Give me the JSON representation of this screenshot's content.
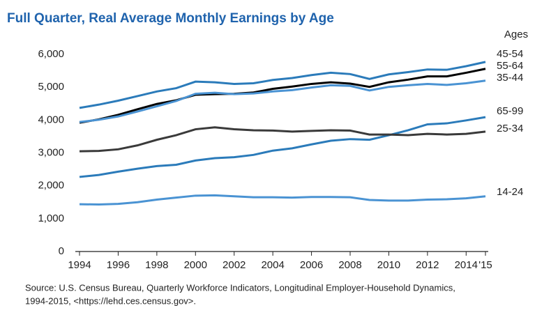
{
  "chart_data": {
    "type": "line",
    "title": "Full Quarter, Real Average Monthly Earnings by Age",
    "legend_title": "Ages",
    "source": [
      "Source: U.S. Census Bureau, Quarterly Workforce Indicators, Longitudinal Employer-Household Dynamics,",
      "1994-2015, <https://lehd.ces.census.gov>."
    ],
    "x": [
      1994,
      1995,
      1996,
      1997,
      1998,
      1999,
      2000,
      2001,
      2002,
      2003,
      2004,
      2005,
      2006,
      2007,
      2008,
      2009,
      2010,
      2011,
      2012,
      2013,
      2014,
      2015
    ],
    "xlim": [
      1994,
      2015
    ],
    "xticks": [
      1994,
      1996,
      1998,
      2000,
      2002,
      2004,
      2006,
      2008,
      2010,
      2012,
      2014,
      {
        "value": 2015,
        "label": "'15"
      }
    ],
    "ylim": [
      0,
      6000
    ],
    "yticks": [
      0,
      {
        "value": 1000,
        "label": "1,000"
      },
      {
        "value": 2000,
        "label": "2,000"
      },
      {
        "value": 3000,
        "label": "3,000"
      },
      {
        "value": 4000,
        "label": "4,000"
      },
      {
        "value": 5000,
        "label": "5,000"
      },
      {
        "value": 6000,
        "label": "6,000"
      }
    ],
    "series": [
      {
        "name": "45-54",
        "color": "#2b7bba",
        "values": [
          4370,
          4470,
          4590,
          4730,
          4870,
          4970,
          5170,
          5150,
          5100,
          5120,
          5220,
          5280,
          5370,
          5440,
          5400,
          5250,
          5390,
          5460,
          5540,
          5530,
          5640,
          5770
        ]
      },
      {
        "name": "55-64",
        "color": "#000000",
        "values": [
          3920,
          4020,
          4160,
          4330,
          4490,
          4600,
          4770,
          4790,
          4800,
          4840,
          4950,
          5020,
          5100,
          5150,
          5110,
          5010,
          5150,
          5230,
          5330,
          5330,
          5440,
          5560
        ]
      },
      {
        "name": "35-44",
        "color": "#4a93d3",
        "values": [
          3940,
          4010,
          4110,
          4260,
          4420,
          4580,
          4800,
          4830,
          4790,
          4810,
          4870,
          4910,
          4990,
          5060,
          5040,
          4900,
          5010,
          5060,
          5100,
          5070,
          5120,
          5200
        ]
      },
      {
        "name": "65-99",
        "color": "#2b7bba",
        "values": [
          2270,
          2330,
          2430,
          2520,
          2600,
          2640,
          2770,
          2840,
          2870,
          2940,
          3070,
          3140,
          3260,
          3370,
          3420,
          3400,
          3540,
          3690,
          3870,
          3900,
          3990,
          4090
        ]
      },
      {
        "name": "25-34",
        "color": "#3a3a3a",
        "values": [
          3050,
          3060,
          3110,
          3230,
          3400,
          3540,
          3720,
          3780,
          3720,
          3690,
          3680,
          3650,
          3670,
          3690,
          3680,
          3560,
          3560,
          3540,
          3580,
          3560,
          3580,
          3650
        ]
      },
      {
        "name": "14-24",
        "color": "#4a93d3",
        "values": [
          1440,
          1430,
          1450,
          1500,
          1580,
          1640,
          1700,
          1710,
          1680,
          1650,
          1650,
          1640,
          1660,
          1660,
          1650,
          1570,
          1550,
          1550,
          1580,
          1590,
          1620,
          1680
        ]
      }
    ]
  }
}
